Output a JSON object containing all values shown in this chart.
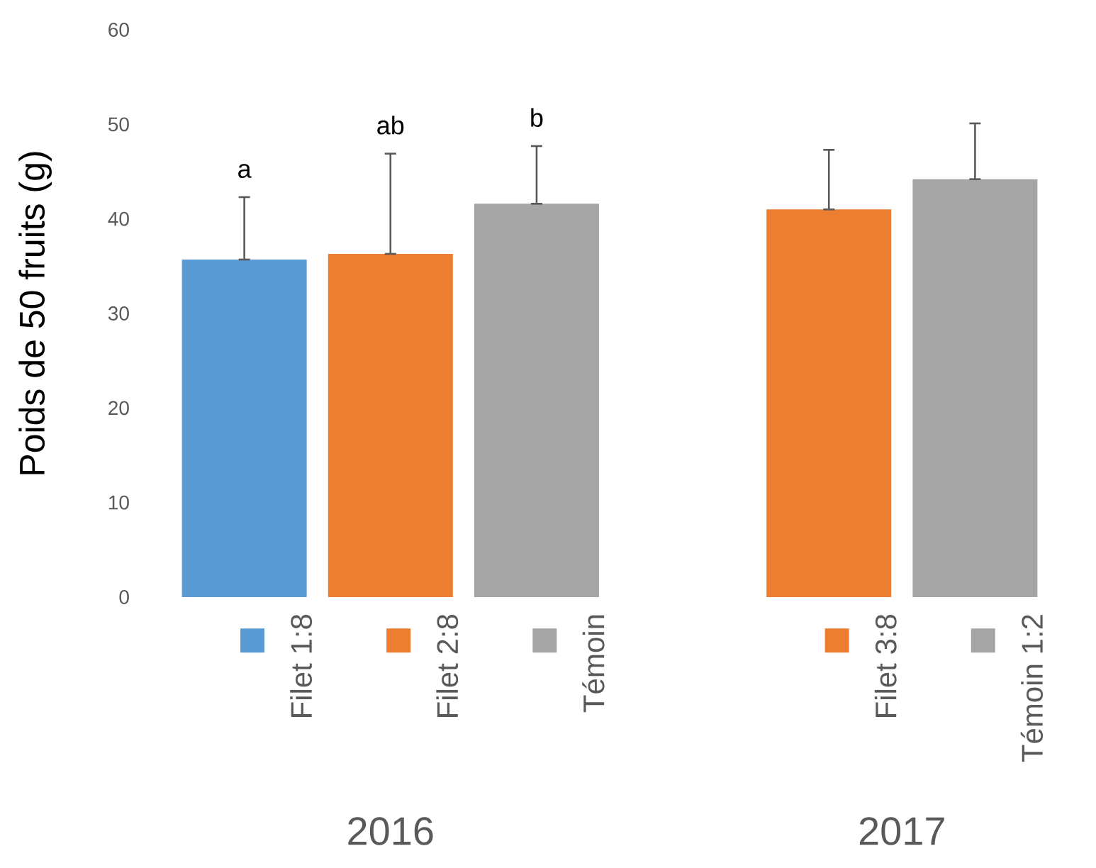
{
  "chart_data": {
    "type": "bar",
    "ylabel": "Poids de 50 fruits (g)",
    "categories": [
      "Filet 1:8",
      "Filet 2:8",
      "Témoin",
      null,
      "Filet 3:8",
      "Témoin 1:2"
    ],
    "values": [
      35.7,
      36.3,
      41.6,
      null,
      41.0,
      44.2
    ],
    "colors": [
      "#5b9bd5",
      "#ed7d31",
      "#a5a5a5",
      null,
      "#ed7d31",
      "#a5a5a5"
    ],
    "errors": [
      [
        35.7,
        42.3
      ],
      [
        36.3,
        46.9
      ],
      [
        41.6,
        47.7
      ],
      null,
      [
        41.0,
        47.3
      ],
      [
        44.2,
        50.1
      ]
    ],
    "annotations": [
      "a",
      "ab",
      "b",
      "2016",
      "2017"
    ],
    "ylim": [
      0,
      60
    ],
    "yticks": [
      0,
      10,
      20,
      30,
      40,
      50,
      60
    ],
    "grid": false
  }
}
